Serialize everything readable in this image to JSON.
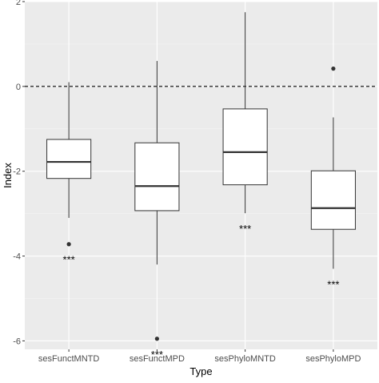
{
  "chart_data": {
    "type": "boxplot",
    "xlabel": "Type",
    "ylabel": "Index",
    "ylim": [
      -6.2,
      2.0
    ],
    "y_ticks": [
      2,
      0,
      -2,
      -4,
      -6
    ],
    "y_tick_labels": [
      "2",
      "0",
      "-2",
      "-4",
      "-6"
    ],
    "reference_line": {
      "y": 0,
      "style": "dashed"
    },
    "grid": true,
    "background": "#ebebeb",
    "categories": [
      "sesFunctMNTD",
      "sesFunctMPD",
      "sesPhyloMNTD",
      "sesPhyloMPD"
    ],
    "boxes": [
      {
        "category": "sesFunctMNTD",
        "whisker_low": -3.1,
        "q1": -2.17,
        "median": -1.78,
        "q3": -1.25,
        "whisker_high": 0.1,
        "outliers": [
          -3.72
        ],
        "significance": "***"
      },
      {
        "category": "sesFunctMPD",
        "whisker_low": -4.2,
        "q1": -2.93,
        "median": -2.35,
        "q3": -1.33,
        "whisker_high": 0.6,
        "outliers": [
          -5.95
        ],
        "significance": "***"
      },
      {
        "category": "sesPhyloMNTD",
        "whisker_low": -2.99,
        "q1": -2.32,
        "median": -1.55,
        "q3": -0.53,
        "whisker_high": 1.75,
        "outliers": [],
        "significance": "***"
      },
      {
        "category": "sesPhyloMPD",
        "whisker_low": -4.3,
        "q1": -3.37,
        "median": -2.87,
        "q3": -1.99,
        "whisker_high": -0.73,
        "outliers": [
          0.42
        ],
        "significance": "***"
      }
    ]
  }
}
